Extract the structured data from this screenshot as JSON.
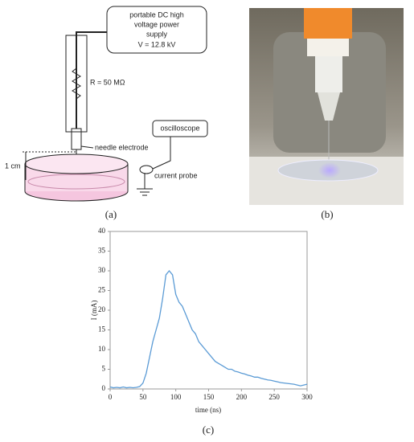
{
  "diagram": {
    "supply": [
      "portable DC high",
      "voltage power",
      "supply",
      "V = 12.8 kV"
    ],
    "resistor": "R = 50 MΩ",
    "needle": "needle electrode",
    "oscilloscope": "oscilloscope",
    "probe": "current probe",
    "gap": "1 cm",
    "caption": "(a)"
  },
  "photo": {
    "caption": "(b)"
  },
  "chart_data": {
    "type": "line",
    "caption": "(c)",
    "x_label": "time (ns)",
    "y_label": "I (mA)",
    "x": [
      0,
      5,
      10,
      15,
      20,
      25,
      30,
      35,
      40,
      45,
      50,
      55,
      60,
      65,
      70,
      75,
      80,
      85,
      90,
      95,
      100,
      105,
      110,
      115,
      120,
      125,
      130,
      135,
      140,
      145,
      150,
      155,
      160,
      165,
      170,
      175,
      180,
      185,
      190,
      195,
      200,
      205,
      210,
      215,
      220,
      225,
      230,
      235,
      240,
      245,
      250,
      255,
      260,
      265,
      270,
      275,
      280,
      285,
      290,
      295,
      300
    ],
    "series": [
      {
        "color": "#5b9bd5",
        "values": [
          0.5,
          0.3,
          0.4,
          0.3,
          0.5,
          0.3,
          0.4,
          0.3,
          0.4,
          0.6,
          1.5,
          4,
          8,
          12,
          15,
          18,
          23,
          29,
          30,
          29,
          24,
          22,
          21,
          19,
          17,
          15,
          14,
          12,
          11,
          10,
          9,
          8,
          7,
          6.5,
          6,
          5.5,
          5,
          5,
          4.5,
          4.3,
          4,
          3.8,
          3.5,
          3.3,
          3,
          3,
          2.7,
          2.5,
          2.3,
          2.2,
          2,
          1.8,
          1.6,
          1.5,
          1.4,
          1.3,
          1.2,
          1.0,
          0.8,
          1.0,
          1.2
        ]
      }
    ],
    "xlim": [
      0,
      300
    ],
    "ylim": [
      0,
      40
    ],
    "xticks": [
      0,
      50,
      100,
      150,
      200,
      250,
      300
    ],
    "yticks": [
      0,
      5,
      10,
      15,
      20,
      25,
      30,
      35,
      40
    ]
  }
}
